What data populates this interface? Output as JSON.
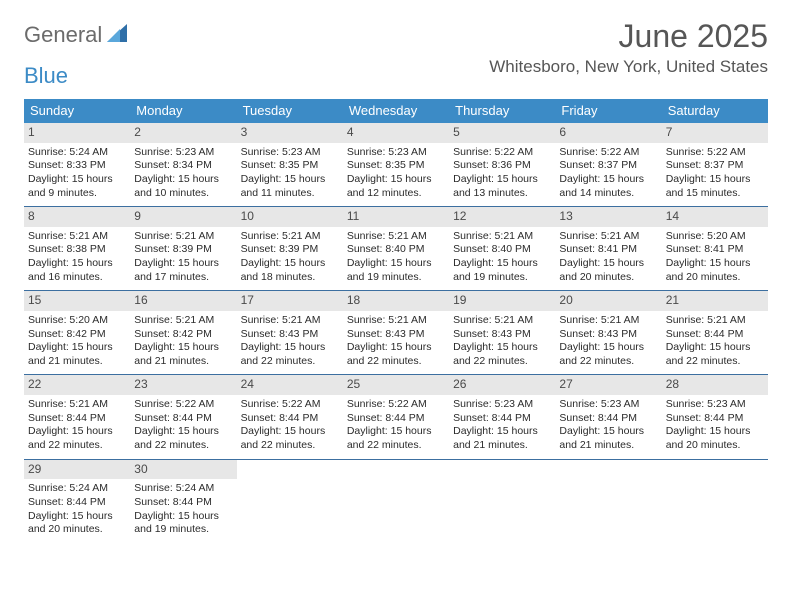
{
  "brand": {
    "text1": "General",
    "text2": "Blue"
  },
  "title": "June 2025",
  "location": "Whitesboro, New York, United States",
  "colors": {
    "header_bg": "#3c8bc6",
    "daynum_bg": "#e7e7e7",
    "rule": "#3c6fa0",
    "text": "#333333",
    "title": "#565656"
  },
  "dow": [
    "Sunday",
    "Monday",
    "Tuesday",
    "Wednesday",
    "Thursday",
    "Friday",
    "Saturday"
  ],
  "weeks": [
    [
      {
        "n": "1",
        "sr": "Sunrise: 5:24 AM",
        "ss": "Sunset: 8:33 PM",
        "d1": "Daylight: 15 hours",
        "d2": "and 9 minutes."
      },
      {
        "n": "2",
        "sr": "Sunrise: 5:23 AM",
        "ss": "Sunset: 8:34 PM",
        "d1": "Daylight: 15 hours",
        "d2": "and 10 minutes."
      },
      {
        "n": "3",
        "sr": "Sunrise: 5:23 AM",
        "ss": "Sunset: 8:35 PM",
        "d1": "Daylight: 15 hours",
        "d2": "and 11 minutes."
      },
      {
        "n": "4",
        "sr": "Sunrise: 5:23 AM",
        "ss": "Sunset: 8:35 PM",
        "d1": "Daylight: 15 hours",
        "d2": "and 12 minutes."
      },
      {
        "n": "5",
        "sr": "Sunrise: 5:22 AM",
        "ss": "Sunset: 8:36 PM",
        "d1": "Daylight: 15 hours",
        "d2": "and 13 minutes."
      },
      {
        "n": "6",
        "sr": "Sunrise: 5:22 AM",
        "ss": "Sunset: 8:37 PM",
        "d1": "Daylight: 15 hours",
        "d2": "and 14 minutes."
      },
      {
        "n": "7",
        "sr": "Sunrise: 5:22 AM",
        "ss": "Sunset: 8:37 PM",
        "d1": "Daylight: 15 hours",
        "d2": "and 15 minutes."
      }
    ],
    [
      {
        "n": "8",
        "sr": "Sunrise: 5:21 AM",
        "ss": "Sunset: 8:38 PM",
        "d1": "Daylight: 15 hours",
        "d2": "and 16 minutes."
      },
      {
        "n": "9",
        "sr": "Sunrise: 5:21 AM",
        "ss": "Sunset: 8:39 PM",
        "d1": "Daylight: 15 hours",
        "d2": "and 17 minutes."
      },
      {
        "n": "10",
        "sr": "Sunrise: 5:21 AM",
        "ss": "Sunset: 8:39 PM",
        "d1": "Daylight: 15 hours",
        "d2": "and 18 minutes."
      },
      {
        "n": "11",
        "sr": "Sunrise: 5:21 AM",
        "ss": "Sunset: 8:40 PM",
        "d1": "Daylight: 15 hours",
        "d2": "and 19 minutes."
      },
      {
        "n": "12",
        "sr": "Sunrise: 5:21 AM",
        "ss": "Sunset: 8:40 PM",
        "d1": "Daylight: 15 hours",
        "d2": "and 19 minutes."
      },
      {
        "n": "13",
        "sr": "Sunrise: 5:21 AM",
        "ss": "Sunset: 8:41 PM",
        "d1": "Daylight: 15 hours",
        "d2": "and 20 minutes."
      },
      {
        "n": "14",
        "sr": "Sunrise: 5:20 AM",
        "ss": "Sunset: 8:41 PM",
        "d1": "Daylight: 15 hours",
        "d2": "and 20 minutes."
      }
    ],
    [
      {
        "n": "15",
        "sr": "Sunrise: 5:20 AM",
        "ss": "Sunset: 8:42 PM",
        "d1": "Daylight: 15 hours",
        "d2": "and 21 minutes."
      },
      {
        "n": "16",
        "sr": "Sunrise: 5:21 AM",
        "ss": "Sunset: 8:42 PM",
        "d1": "Daylight: 15 hours",
        "d2": "and 21 minutes."
      },
      {
        "n": "17",
        "sr": "Sunrise: 5:21 AM",
        "ss": "Sunset: 8:43 PM",
        "d1": "Daylight: 15 hours",
        "d2": "and 22 minutes."
      },
      {
        "n": "18",
        "sr": "Sunrise: 5:21 AM",
        "ss": "Sunset: 8:43 PM",
        "d1": "Daylight: 15 hours",
        "d2": "and 22 minutes."
      },
      {
        "n": "19",
        "sr": "Sunrise: 5:21 AM",
        "ss": "Sunset: 8:43 PM",
        "d1": "Daylight: 15 hours",
        "d2": "and 22 minutes."
      },
      {
        "n": "20",
        "sr": "Sunrise: 5:21 AM",
        "ss": "Sunset: 8:43 PM",
        "d1": "Daylight: 15 hours",
        "d2": "and 22 minutes."
      },
      {
        "n": "21",
        "sr": "Sunrise: 5:21 AM",
        "ss": "Sunset: 8:44 PM",
        "d1": "Daylight: 15 hours",
        "d2": "and 22 minutes."
      }
    ],
    [
      {
        "n": "22",
        "sr": "Sunrise: 5:21 AM",
        "ss": "Sunset: 8:44 PM",
        "d1": "Daylight: 15 hours",
        "d2": "and 22 minutes."
      },
      {
        "n": "23",
        "sr": "Sunrise: 5:22 AM",
        "ss": "Sunset: 8:44 PM",
        "d1": "Daylight: 15 hours",
        "d2": "and 22 minutes."
      },
      {
        "n": "24",
        "sr": "Sunrise: 5:22 AM",
        "ss": "Sunset: 8:44 PM",
        "d1": "Daylight: 15 hours",
        "d2": "and 22 minutes."
      },
      {
        "n": "25",
        "sr": "Sunrise: 5:22 AM",
        "ss": "Sunset: 8:44 PM",
        "d1": "Daylight: 15 hours",
        "d2": "and 22 minutes."
      },
      {
        "n": "26",
        "sr": "Sunrise: 5:23 AM",
        "ss": "Sunset: 8:44 PM",
        "d1": "Daylight: 15 hours",
        "d2": "and 21 minutes."
      },
      {
        "n": "27",
        "sr": "Sunrise: 5:23 AM",
        "ss": "Sunset: 8:44 PM",
        "d1": "Daylight: 15 hours",
        "d2": "and 21 minutes."
      },
      {
        "n": "28",
        "sr": "Sunrise: 5:23 AM",
        "ss": "Sunset: 8:44 PM",
        "d1": "Daylight: 15 hours",
        "d2": "and 20 minutes."
      }
    ],
    [
      {
        "n": "29",
        "sr": "Sunrise: 5:24 AM",
        "ss": "Sunset: 8:44 PM",
        "d1": "Daylight: 15 hours",
        "d2": "and 20 minutes."
      },
      {
        "n": "30",
        "sr": "Sunrise: 5:24 AM",
        "ss": "Sunset: 8:44 PM",
        "d1": "Daylight: 15 hours",
        "d2": "and 19 minutes."
      },
      null,
      null,
      null,
      null,
      null
    ]
  ]
}
